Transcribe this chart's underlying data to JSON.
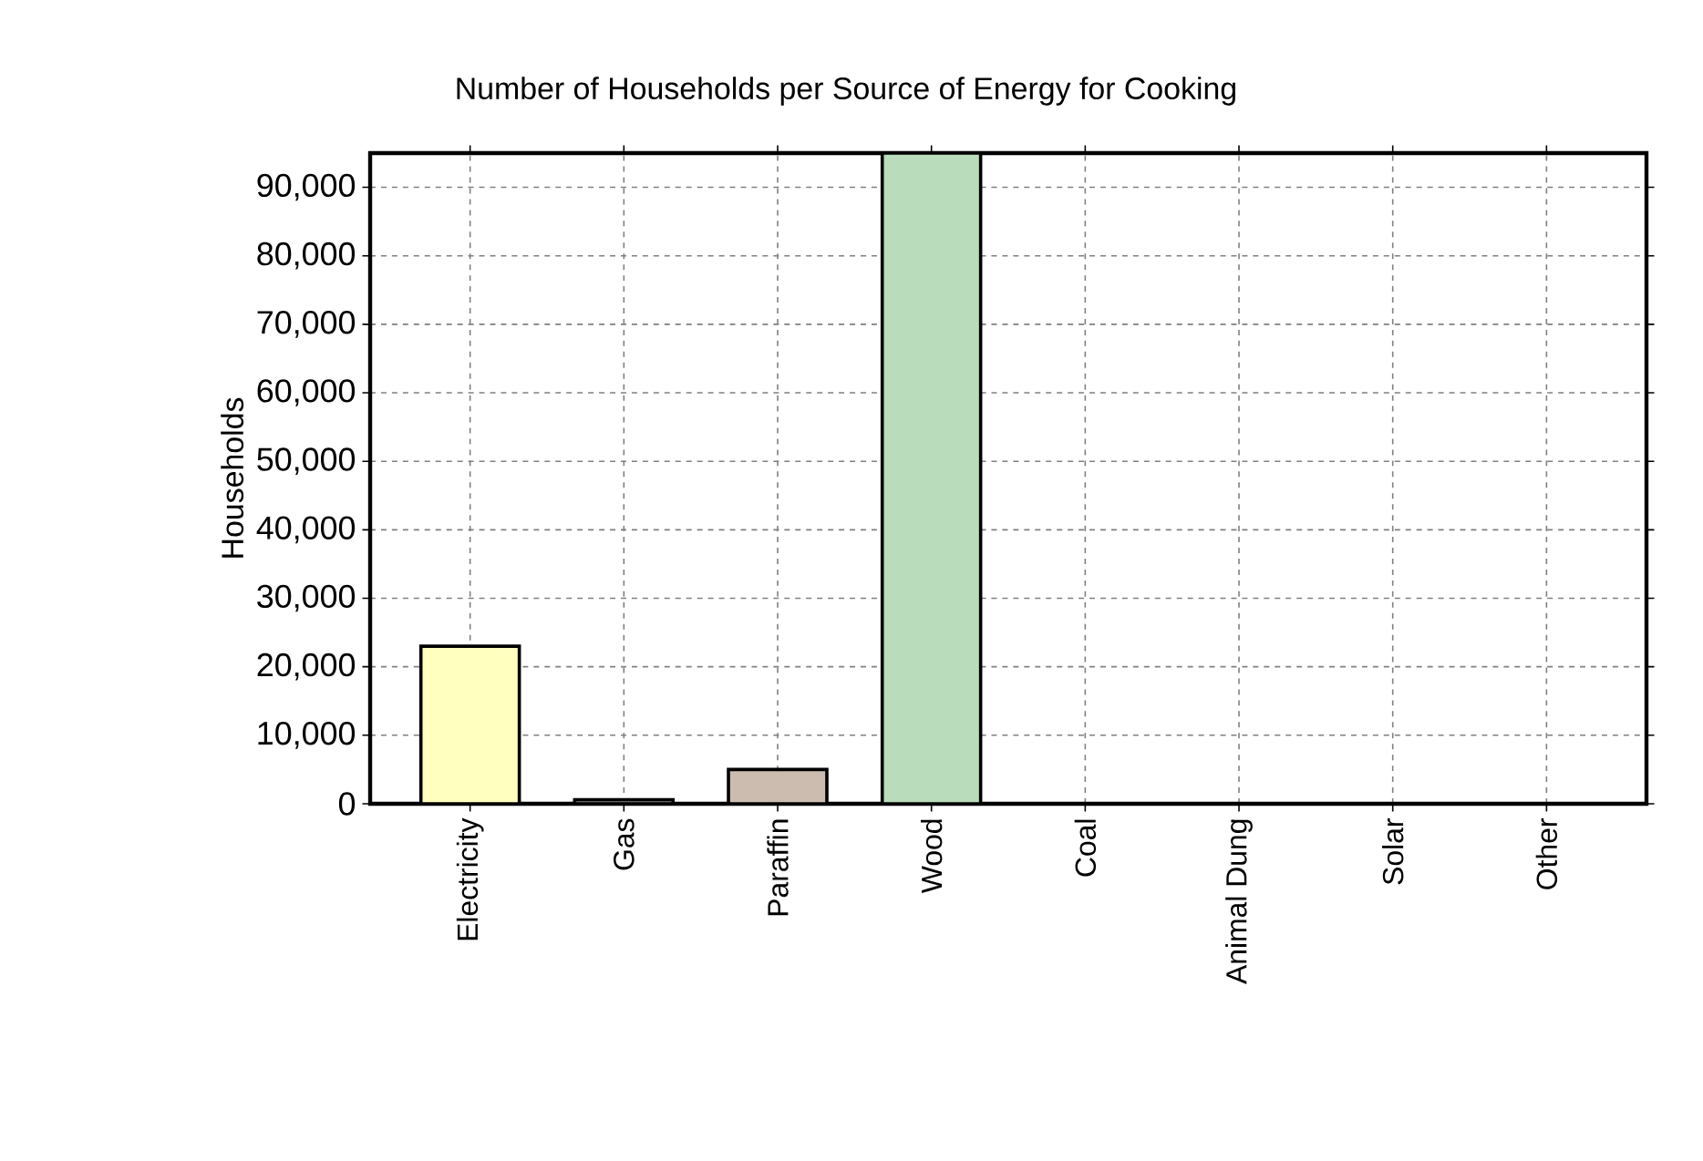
{
  "chart_data": {
    "type": "bar",
    "title": "Number of Households per Source of Energy for Cooking",
    "ylabel": "Households",
    "categories": [
      "Electricity",
      "Gas",
      "Paraffin",
      "Wood",
      "Coal",
      "Animal Dung",
      "Solar",
      "Other"
    ],
    "values": [
      23000,
      600,
      5000,
      95000,
      0,
      0,
      0,
      0
    ],
    "colors": [
      "#ffffc0",
      "#808080",
      "#cbbcaf",
      "#b9dcbb",
      "#808080",
      "#808080",
      "#808080",
      "#808080"
    ],
    "ylim": [
      0,
      95000
    ],
    "yticks": [
      0,
      {
        "value": 10000,
        "label": "10,000"
      },
      {
        "value": 20000,
        "label": "20,000"
      },
      {
        "value": 30000,
        "label": "30,000"
      },
      {
        "value": 40000,
        "label": "40,000"
      },
      {
        "value": 50000,
        "label": "50,000"
      },
      {
        "value": 60000,
        "label": "60,000"
      },
      {
        "value": 70000,
        "label": "70,000"
      },
      {
        "value": 80000,
        "label": "80,000"
      },
      {
        "value": 90000,
        "label": "90,000"
      }
    ],
    "grid": true
  }
}
